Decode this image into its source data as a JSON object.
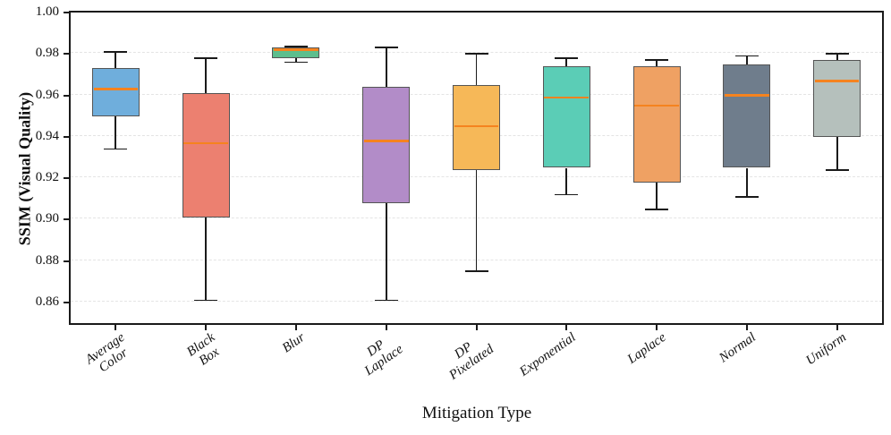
{
  "chart_data": {
    "type": "box",
    "title": "",
    "xlabel": "Mitigation Type",
    "ylabel": "SSIM (Visual Quality)",
    "ylim": [
      0.85,
      1.0
    ],
    "yticks": [
      0.86,
      0.88,
      0.9,
      0.92,
      0.94,
      0.96,
      0.98,
      1.0
    ],
    "grid": {
      "axis": "y",
      "style": "dashed",
      "color": "#e4e4e4"
    },
    "legend": "none",
    "categories": [
      "Average Color",
      "Black Box",
      "Blur",
      "DP Laplace",
      "DP Pixelated",
      "Exponential",
      "Laplace",
      "Normal",
      "Uniform"
    ],
    "boxes": [
      {
        "category": "Average Color",
        "label_lines": [
          "Average",
          "Color"
        ],
        "whisker_low": 0.934,
        "q1": 0.95,
        "median": 0.963,
        "q3": 0.973,
        "whisker_high": 0.981,
        "fill": "#6FAEDC"
      },
      {
        "category": "Black Box",
        "label_lines": [
          "Black",
          "Box"
        ],
        "whisker_low": 0.861,
        "q1": 0.901,
        "median": 0.937,
        "q3": 0.961,
        "whisker_high": 0.978,
        "fill": "#EC8070"
      },
      {
        "category": "Blur",
        "label_lines": [
          "Blur"
        ],
        "whisker_low": 0.976,
        "q1": 0.978,
        "median": 0.982,
        "q3": 0.983,
        "whisker_high": 0.9835,
        "fill": "#5DBE8D"
      },
      {
        "category": "DP Laplace",
        "label_lines": [
          "DP",
          "Laplace"
        ],
        "whisker_low": 0.861,
        "q1": 0.908,
        "median": 0.938,
        "q3": 0.964,
        "whisker_high": 0.983,
        "fill": "#B28CC8"
      },
      {
        "category": "DP Pixelated",
        "label_lines": [
          "DP",
          "Pixelated"
        ],
        "whisker_low": 0.875,
        "q1": 0.924,
        "median": 0.945,
        "q3": 0.965,
        "whisker_high": 0.98,
        "fill": "#F6B858"
      },
      {
        "category": "Exponential",
        "label_lines": [
          "Exponential"
        ],
        "whisker_low": 0.912,
        "q1": 0.925,
        "median": 0.959,
        "q3": 0.974,
        "whisker_high": 0.978,
        "fill": "#5BCDB6"
      },
      {
        "category": "Laplace",
        "label_lines": [
          "Laplace"
        ],
        "whisker_low": 0.905,
        "q1": 0.918,
        "median": 0.955,
        "q3": 0.974,
        "whisker_high": 0.977,
        "fill": "#EFA163"
      },
      {
        "category": "Normal",
        "label_lines": [
          "Normal"
        ],
        "whisker_low": 0.911,
        "q1": 0.925,
        "median": 0.96,
        "q3": 0.975,
        "whisker_high": 0.979,
        "fill": "#6F7D8C"
      },
      {
        "category": "Uniform",
        "label_lines": [
          "Uniform"
        ],
        "whisker_low": 0.924,
        "q1": 0.94,
        "median": 0.967,
        "q3": 0.977,
        "whisker_high": 0.98,
        "fill": "#B5C0BC"
      }
    ],
    "style": {
      "median_color": "#F5831F",
      "box_edge_color": "#555555",
      "whisker_color": "#1A1A1A",
      "spine_color": "#1A1A1A",
      "grid_color": "#E4E4E4",
      "background": "#FFFFFF"
    }
  }
}
